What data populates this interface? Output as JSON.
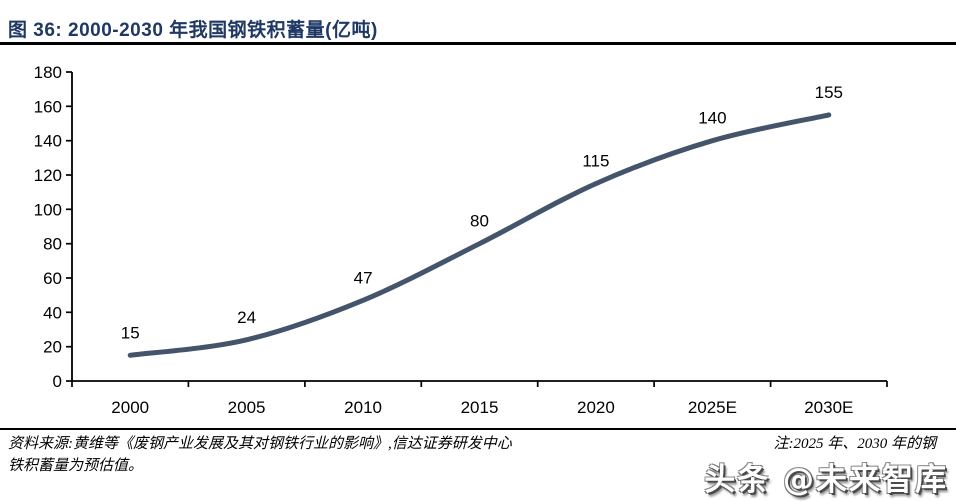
{
  "header": {
    "title": "图 36: 2000-2030 年我国钢铁积蓄量(亿吨)"
  },
  "chart_data": {
    "type": "line",
    "title": "图 36: 2000-2030 年我国钢铁积蓄量(亿吨)",
    "categories": [
      "2000",
      "2005",
      "2010",
      "2015",
      "2020",
      "2025E",
      "2030E"
    ],
    "series": [
      {
        "name": "钢铁积蓄量",
        "values": [
          15,
          24,
          47,
          80,
          115,
          140,
          155
        ]
      }
    ],
    "xlabel": "",
    "ylabel": "",
    "ylim": [
      0,
      180
    ],
    "ytick_step": 20,
    "grid": false,
    "legend": "none",
    "data_labels": [
      15,
      24,
      47,
      80,
      115,
      140,
      155
    ],
    "smoothed": true,
    "line_color": "#44546a",
    "axis_color": "#000000"
  },
  "footer": {
    "source": "资料来源:黄维等《废钢产业发展及其对钢铁行业的影响》,信达证券研发中心",
    "note_line1": "注:2025 年、2030 年的钢",
    "note_line2": "铁积蓄量为预估值。"
  },
  "watermark": {
    "text": "头条 @未来智库"
  }
}
